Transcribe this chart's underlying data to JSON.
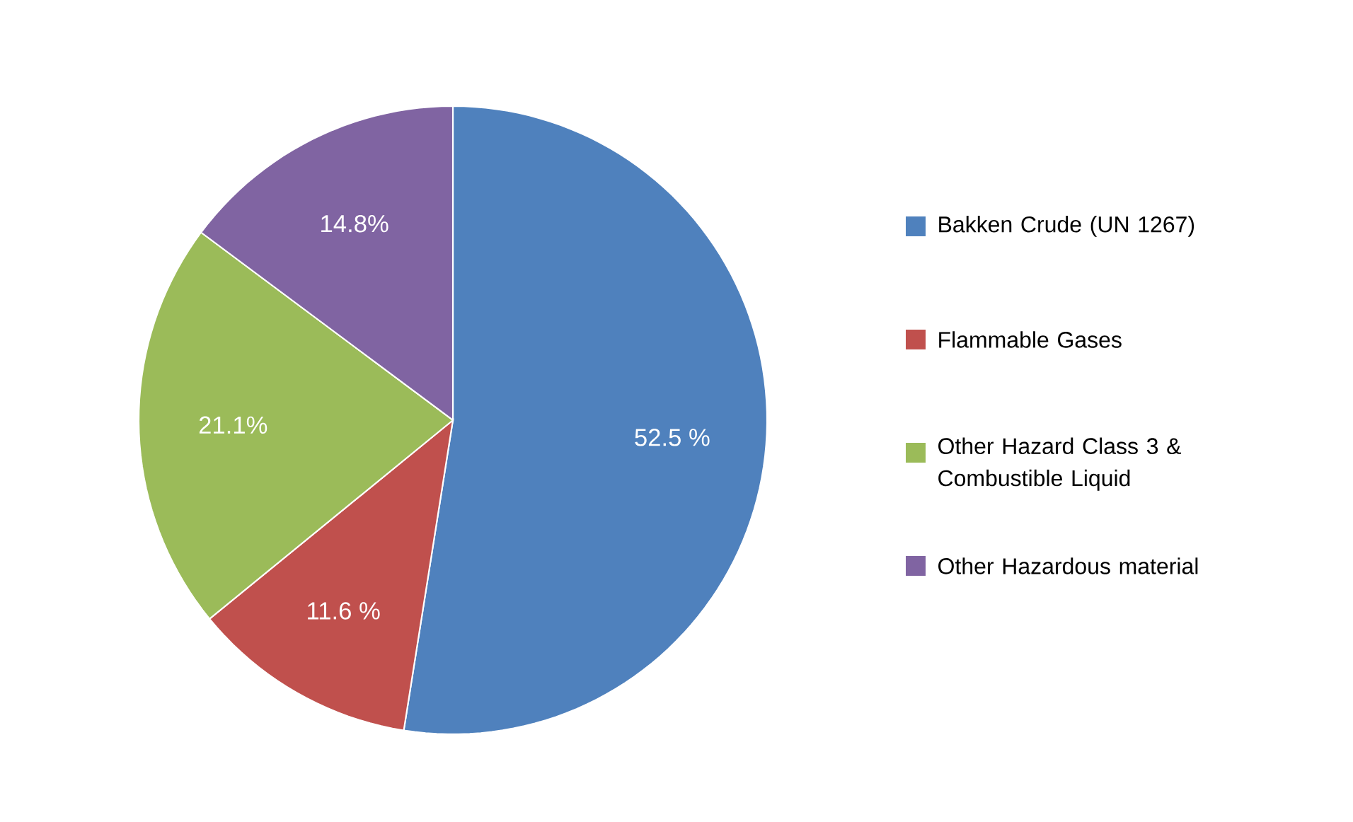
{
  "chart_data": {
    "type": "pie",
    "categories": [
      "Bakken Crude (UN 1267)",
      "Flammable Gases",
      "Other Hazard Class 3 & Combustible Liquid",
      "Other Hazardous material"
    ],
    "values": [
      52.5,
      11.6,
      21.1,
      14.8
    ],
    "colors": [
      "#4f81bd",
      "#c0504d",
      "#9bbb59",
      "#8064a2"
    ],
    "value_labels": [
      "52.5 %",
      "11.6 %",
      "21.1%",
      "14.8%"
    ],
    "legend": "right"
  }
}
